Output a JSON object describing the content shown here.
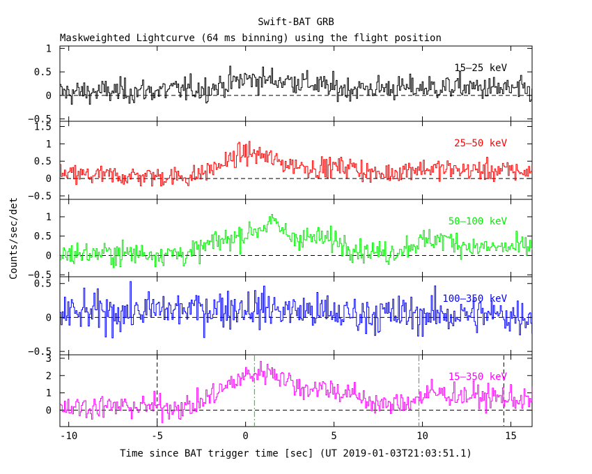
{
  "chart_data": {
    "type": "line",
    "title": "Swift-BAT GRB",
    "subtitle": "Maskweighted Lightcurve (64 ms binning) using the flight position",
    "xlabel": "Time since BAT trigger time [sec] (UT 2019-01-03T21:03:51.1)",
    "ylabel": "Counts/sec/det",
    "xlim": [
      -10.5,
      16.2
    ],
    "x_ticks": [
      "-10",
      "-5",
      "0",
      "5",
      "10",
      "15"
    ],
    "x_tick_values": [
      -10,
      -5,
      0,
      5,
      10,
      15
    ],
    "bin_width": 0.064,
    "grid": false,
    "panels": [
      {
        "name": "15-25 keV",
        "label": "15–25 keV",
        "color": "#000000",
        "ylim": [
          -0.55,
          1.05
        ],
        "y_ticks": [
          "−0.5",
          "0",
          "0.5",
          "1"
        ],
        "y_tick_values": [
          -0.5,
          0,
          0.5,
          1
        ],
        "noise": 0.13,
        "profile": [
          [
            -10.5,
            0.06
          ],
          [
            -5,
            0.1
          ],
          [
            -2,
            0.15
          ],
          [
            0,
            0.35
          ],
          [
            3,
            0.3
          ],
          [
            5,
            0.15
          ],
          [
            9,
            0.15
          ],
          [
            12,
            0.18
          ],
          [
            16.2,
            0.1
          ]
        ]
      },
      {
        "name": "25-50 keV",
        "label": "25–50 keV",
        "color": "#ff0000",
        "ylim": [
          -0.6,
          1.65
        ],
        "y_ticks": [
          "−0.5",
          "0",
          "0.5",
          "1",
          "1.5"
        ],
        "y_tick_values": [
          -0.5,
          0,
          0.5,
          1,
          1.5
        ],
        "noise": 0.15,
        "profile": [
          [
            -10.5,
            0.1
          ],
          [
            -3,
            0.05
          ],
          [
            -2,
            0.25
          ],
          [
            0,
            0.75
          ],
          [
            1,
            0.65
          ],
          [
            2,
            0.45
          ],
          [
            4,
            0.3
          ],
          [
            6,
            0.35
          ],
          [
            7.5,
            0.1
          ],
          [
            9.5,
            0.3
          ],
          [
            12,
            0.25
          ],
          [
            16.2,
            0.2
          ]
        ]
      },
      {
        "name": "50-100 keV",
        "label": "50–100 keV",
        "color": "#00ee00",
        "ylim": [
          -0.55,
          1.45
        ],
        "y_ticks": [
          "−0.5",
          "0",
          "0.5",
          "1"
        ],
        "y_tick_values": [
          -0.5,
          0,
          0.5,
          1
        ],
        "noise": 0.15,
        "profile": [
          [
            -10.5,
            0.05
          ],
          [
            -3,
            0.05
          ],
          [
            -2,
            0.3
          ],
          [
            0,
            0.55
          ],
          [
            1.5,
            0.85
          ],
          [
            2.5,
            0.5
          ],
          [
            5,
            0.4
          ],
          [
            6.5,
            0.15
          ],
          [
            8,
            0.05
          ],
          [
            9.5,
            0.3
          ],
          [
            11,
            0.45
          ],
          [
            13,
            0.2
          ],
          [
            16.2,
            0.2
          ]
        ]
      },
      {
        "name": "100-350 keV",
        "label": "100–350 keV",
        "color": "#0000ff",
        "ylim": [
          -0.55,
          0.6
        ],
        "y_ticks": [
          "−0.5",
          "0",
          "0.5"
        ],
        "y_tick_values": [
          -0.5,
          0,
          0.5
        ],
        "noise": 0.14,
        "profile": [
          [
            -10.5,
            0.05
          ],
          [
            0,
            0.15
          ],
          [
            3,
            0.1
          ],
          [
            5,
            0.05
          ],
          [
            16.2,
            0.03
          ]
        ]
      },
      {
        "name": "15-350 keV",
        "label": "15–350 keV",
        "color": "#ff00ff",
        "ylim": [
          -0.95,
          3.2
        ],
        "y_ticks": [
          "0",
          "1",
          "2",
          "3"
        ],
        "y_tick_values": [
          0,
          1,
          2,
          3
        ],
        "noise": 0.35,
        "profile": [
          [
            -10.5,
            0.2
          ],
          [
            -3,
            0.2
          ],
          [
            -2,
            0.8
          ],
          [
            0,
            2.0
          ],
          [
            1.5,
            2.3
          ],
          [
            3,
            1.3
          ],
          [
            4.5,
            1.3
          ],
          [
            6,
            0.9
          ],
          [
            8,
            0.2
          ],
          [
            9.5,
            0.6
          ],
          [
            10.5,
            1.0
          ],
          [
            13,
            0.8
          ],
          [
            16.2,
            0.6
          ]
        ],
        "markers": [
          {
            "x": -5.0,
            "color": "#000000",
            "style": "dashed"
          },
          {
            "x": 0.5,
            "color": "#00cc00",
            "style": "dashdot"
          },
          {
            "x": 9.8,
            "color": "#00cc00",
            "style": "dashdot"
          },
          {
            "x": 14.6,
            "color": "#000000",
            "style": "dashed"
          }
        ]
      }
    ]
  }
}
